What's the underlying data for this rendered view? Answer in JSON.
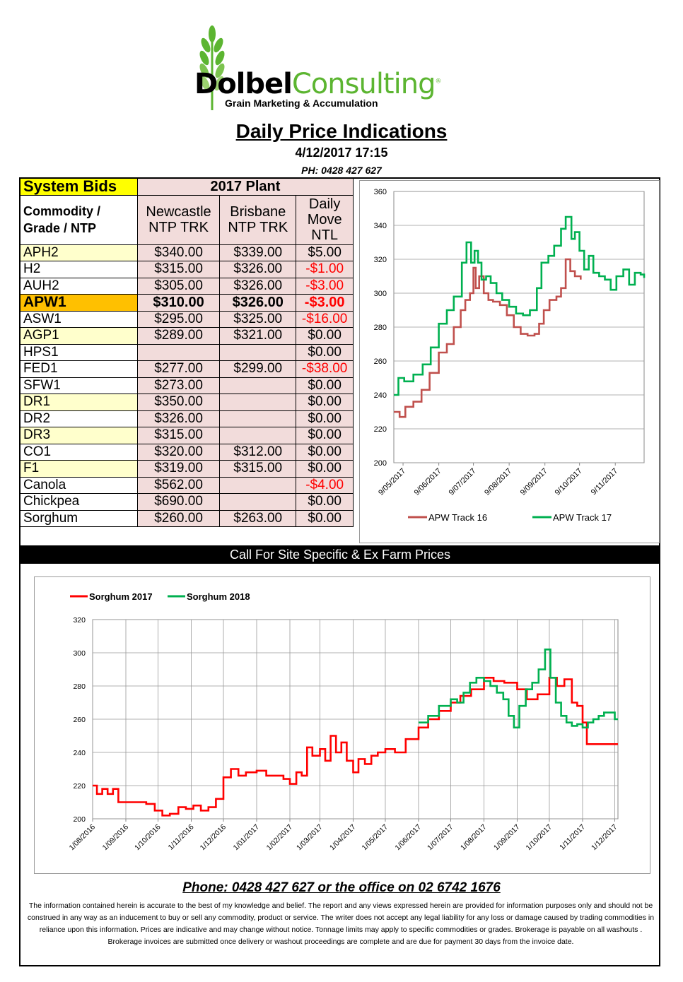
{
  "logo": {
    "name_a": "Dolbel",
    "name_b": "Consulting",
    "reg": "®",
    "tagline": "Grain Marketing & Accumulation"
  },
  "header": {
    "title": "Daily Price Indications",
    "datetime": "4/12/2017 17:15",
    "phone": "PH: 0428 427 627"
  },
  "table": {
    "system_bids": "System Bids",
    "plant": "2017 Plant",
    "col_commodity": "Commodity / Grade / NTP",
    "col_newcastle": "Newcastle NTP TRK",
    "col_brisbane": "Brisbane NTP TRK",
    "col_move": "Daily Move NTL",
    "rows": [
      {
        "grade": "APH2",
        "newcastle": "$340.00",
        "brisbane": "$339.00",
        "move": "$5.00",
        "style": "y",
        "neg": false
      },
      {
        "grade": "H2",
        "newcastle": "$315.00",
        "brisbane": "$326.00",
        "move": "-$1.00",
        "style": "w",
        "neg": true
      },
      {
        "grade": "AUH2",
        "newcastle": "$305.00",
        "brisbane": "$326.00",
        "move": "-$3.00",
        "style": "w",
        "neg": true
      },
      {
        "grade": "APW1",
        "newcastle": "$310.00",
        "brisbane": "$326.00",
        "move": "-$3.00",
        "style": "g",
        "neg": true
      },
      {
        "grade": "ASW1",
        "newcastle": "$295.00",
        "brisbane": "$325.00",
        "move": "-$16.00",
        "style": "w",
        "neg": true
      },
      {
        "grade": "AGP1",
        "newcastle": "$289.00",
        "brisbane": "$321.00",
        "move": "$0.00",
        "style": "y",
        "neg": false
      },
      {
        "grade": "HPS1",
        "newcastle": "",
        "brisbane": "",
        "move": "$0.00",
        "style": "w",
        "neg": false
      },
      {
        "grade": "FED1",
        "newcastle": "$277.00",
        "brisbane": "$299.00",
        "move": "-$38.00",
        "style": "w",
        "neg": true
      },
      {
        "grade": "SFW1",
        "newcastle": "$273.00",
        "brisbane": "",
        "move": "$0.00",
        "style": "w",
        "neg": false
      },
      {
        "grade": "DR1",
        "newcastle": "$350.00",
        "brisbane": "",
        "move": "$0.00",
        "style": "y",
        "neg": false
      },
      {
        "grade": "DR2",
        "newcastle": "$326.00",
        "brisbane": "",
        "move": "$0.00",
        "style": "w",
        "neg": false
      },
      {
        "grade": "DR3",
        "newcastle": "$315.00",
        "brisbane": "",
        "move": "$0.00",
        "style": "y",
        "neg": false
      },
      {
        "grade": "CO1",
        "newcastle": "$320.00",
        "brisbane": "$312.00",
        "move": "$0.00",
        "style": "w",
        "neg": false
      },
      {
        "grade": "F1",
        "newcastle": "$319.00",
        "brisbane": "$315.00",
        "move": "$0.00",
        "style": "y",
        "neg": false
      },
      {
        "grade": "Canola",
        "newcastle": "$562.00",
        "brisbane": "",
        "move": "-$4.00",
        "style": "w",
        "neg": true
      },
      {
        "grade": "Chickpea",
        "newcastle": "$690.00",
        "brisbane": "",
        "move": "$0.00",
        "style": "w",
        "neg": false
      },
      {
        "grade": "Sorghum",
        "newcastle": "$260.00",
        "brisbane": "$263.00",
        "move": "$0.00",
        "style": "w",
        "neg": false
      }
    ]
  },
  "call_bar": "Call For Site Specific & Ex Farm Prices",
  "footer": {
    "phone_line": "Phone: 0428 427 627 or the office on 02 6742 1676",
    "disclaimer": "The information contained herein is accurate to the best of my knowledge and belief.  The report and any views expressed herein are provided for information purposes only and should not be construed in any way as an inducement to buy or sell any commodity, product or service. The writer does not accept any legal liability for any loss or damage caused by trading commodities in reliance upon this information. Prices are indicative and may change without notice. Tonnage limits may apply to specific commodities or grades.  Brokerage is payable on all washouts . Brokerage invoices are submitted once delivery or washout proceedings are complete and are due for payment 30 days from the invoice date."
  },
  "chart_data": [
    {
      "type": "line",
      "title": "",
      "ylim": [
        200,
        360
      ],
      "yticks": [
        200,
        220,
        240,
        260,
        280,
        300,
        320,
        340,
        360
      ],
      "xlim": [
        "2017-05-01",
        "2017-12-04"
      ],
      "xtick_labels": [
        "9/05/2017",
        "9/06/2017",
        "9/07/2017",
        "9/08/2017",
        "9/09/2017",
        "9/10/2017",
        "9/11/2017"
      ],
      "xtick_dates": [
        "2017-05-09",
        "2017-06-09",
        "2017-07-09",
        "2017-08-09",
        "2017-09-09",
        "2017-10-09",
        "2017-11-09"
      ],
      "legend_position": "bottom",
      "series": [
        {
          "name": "APW Track 16",
          "color": "#c0504d",
          "x": [
            "2017-05-01",
            "2017-05-06",
            "2017-05-11",
            "2017-05-18",
            "2017-05-25",
            "2017-06-01",
            "2017-06-09",
            "2017-06-16",
            "2017-06-22",
            "2017-06-28",
            "2017-07-02",
            "2017-07-06",
            "2017-07-09",
            "2017-07-11",
            "2017-07-14",
            "2017-07-18",
            "2017-07-22",
            "2017-07-26",
            "2017-08-01",
            "2017-08-07",
            "2017-08-13",
            "2017-08-19",
            "2017-08-25",
            "2017-08-31",
            "2017-09-04",
            "2017-09-08",
            "2017-09-13",
            "2017-09-19",
            "2017-09-23",
            "2017-09-27",
            "2017-10-01",
            "2017-10-05",
            "2017-10-10"
          ],
          "y": [
            230,
            227,
            233,
            236,
            243,
            253,
            265,
            270,
            280,
            290,
            296,
            300,
            315,
            303,
            310,
            300,
            296,
            295,
            293,
            287,
            280,
            276,
            275,
            276,
            282,
            290,
            296,
            298,
            303,
            320,
            313,
            310,
            308
          ]
        },
        {
          "name": "APW Track 17",
          "color": "#00b050",
          "x": [
            "2017-05-01",
            "2017-05-05",
            "2017-05-10",
            "2017-05-18",
            "2017-05-26",
            "2017-06-02",
            "2017-06-09",
            "2017-06-16",
            "2017-06-22",
            "2017-06-29",
            "2017-07-03",
            "2017-07-07",
            "2017-07-10",
            "2017-07-13",
            "2017-07-16",
            "2017-07-20",
            "2017-07-24",
            "2017-07-29",
            "2017-08-03",
            "2017-08-09",
            "2017-08-15",
            "2017-08-21",
            "2017-08-27",
            "2017-09-02",
            "2017-09-06",
            "2017-09-12",
            "2017-09-17",
            "2017-09-23",
            "2017-09-27",
            "2017-10-02",
            "2017-10-05",
            "2017-10-09",
            "2017-10-13",
            "2017-10-17",
            "2017-10-21",
            "2017-10-26",
            "2017-10-31",
            "2017-11-05",
            "2017-11-10",
            "2017-11-16",
            "2017-11-21",
            "2017-11-26",
            "2017-12-01",
            "2017-12-04"
          ],
          "y": [
            240,
            250,
            248,
            252,
            258,
            268,
            282,
            290,
            298,
            318,
            330,
            318,
            325,
            318,
            308,
            310,
            306,
            300,
            296,
            292,
            288,
            287,
            290,
            303,
            318,
            322,
            328,
            338,
            345,
            332,
            336,
            325,
            314,
            322,
            312,
            310,
            308,
            302,
            310,
            314,
            305,
            312,
            311,
            309
          ]
        }
      ]
    },
    {
      "type": "line",
      "title": "",
      "ylim": [
        200,
        320
      ],
      "yticks": [
        200,
        220,
        240,
        260,
        280,
        300,
        320
      ],
      "xlim": [
        "2016-08-01",
        "2017-12-04"
      ],
      "xtick_labels": [
        "1/08/2016",
        "1/09/2016",
        "1/10/2016",
        "1/11/2016",
        "1/12/2016",
        "1/01/2017",
        "1/02/2017",
        "1/03/2017",
        "1/04/2017",
        "1/05/2017",
        "1/06/2017",
        "1/07/2017",
        "1/08/2017",
        "1/09/2017",
        "1/10/2017",
        "1/11/2017",
        "1/12/2017"
      ],
      "xtick_dates": [
        "2016-08-01",
        "2016-09-01",
        "2016-10-01",
        "2016-11-01",
        "2016-12-01",
        "2017-01-01",
        "2017-02-01",
        "2017-03-01",
        "2017-04-01",
        "2017-05-01",
        "2017-06-01",
        "2017-07-01",
        "2017-08-01",
        "2017-09-01",
        "2017-10-01",
        "2017-11-01",
        "2017-12-01"
      ],
      "legend_position": "top-left",
      "series": [
        {
          "name": "Sorghum 2017",
          "color": "#ff0000",
          "x": [
            "2016-08-01",
            "2016-08-05",
            "2016-08-10",
            "2016-08-15",
            "2016-08-20",
            "2016-08-25",
            "2016-09-01",
            "2016-09-10",
            "2016-09-20",
            "2016-09-28",
            "2016-10-05",
            "2016-10-12",
            "2016-10-20",
            "2016-10-27",
            "2016-11-03",
            "2016-11-10",
            "2016-11-17",
            "2016-11-24",
            "2016-12-01",
            "2016-12-08",
            "2016-12-15",
            "2016-12-22",
            "2017-01-01",
            "2017-01-10",
            "2017-01-18",
            "2017-01-26",
            "2017-02-01",
            "2017-02-07",
            "2017-02-12",
            "2017-02-17",
            "2017-02-22",
            "2017-03-01",
            "2017-03-06",
            "2017-03-11",
            "2017-03-16",
            "2017-03-21",
            "2017-03-26",
            "2017-04-01",
            "2017-04-06",
            "2017-04-12",
            "2017-04-18",
            "2017-04-24",
            "2017-05-01",
            "2017-05-10",
            "2017-05-20",
            "2017-06-01",
            "2017-06-10",
            "2017-06-20",
            "2017-07-01",
            "2017-07-10",
            "2017-07-20",
            "2017-08-01",
            "2017-08-10",
            "2017-08-20",
            "2017-09-01",
            "2017-09-10",
            "2017-09-20",
            "2017-10-01",
            "2017-10-08",
            "2017-10-15",
            "2017-10-22",
            "2017-10-27",
            "2017-11-01",
            "2017-11-05",
            "2017-11-15",
            "2017-12-01",
            "2017-12-04"
          ],
          "y": [
            220,
            215,
            218,
            215,
            218,
            210,
            210,
            210,
            209,
            205,
            202,
            203,
            207,
            206,
            208,
            205,
            207,
            212,
            225,
            230,
            226,
            228,
            229,
            226,
            226,
            224,
            221,
            228,
            226,
            243,
            238,
            242,
            235,
            250,
            240,
            246,
            235,
            228,
            236,
            233,
            238,
            240,
            242,
            240,
            248,
            255,
            260,
            265,
            270,
            274,
            278,
            285,
            283,
            282,
            278,
            272,
            275,
            285,
            280,
            284,
            270,
            268,
            258,
            245,
            245,
            245,
            245
          ]
        },
        {
          "name": "Sorghum 2018",
          "color": "#00b050",
          "x": [
            "2017-06-01",
            "2017-06-10",
            "2017-06-20",
            "2017-07-01",
            "2017-07-07",
            "2017-07-13",
            "2017-07-19",
            "2017-07-25",
            "2017-08-01",
            "2017-08-07",
            "2017-08-13",
            "2017-08-19",
            "2017-08-24",
            "2017-08-29",
            "2017-09-03",
            "2017-09-09",
            "2017-09-15",
            "2017-09-21",
            "2017-09-27",
            "2017-10-02",
            "2017-10-07",
            "2017-10-12",
            "2017-10-17",
            "2017-10-22",
            "2017-10-27",
            "2017-11-01",
            "2017-11-06",
            "2017-11-11",
            "2017-11-16",
            "2017-11-21",
            "2017-11-26",
            "2017-12-01",
            "2017-12-04"
          ],
          "y": [
            258,
            262,
            268,
            272,
            270,
            276,
            282,
            285,
            283,
            280,
            276,
            272,
            262,
            255,
            268,
            278,
            282,
            290,
            302,
            285,
            270,
            262,
            258,
            256,
            257,
            255,
            258,
            260,
            262,
            264,
            264,
            260,
            260
          ]
        }
      ]
    }
  ]
}
